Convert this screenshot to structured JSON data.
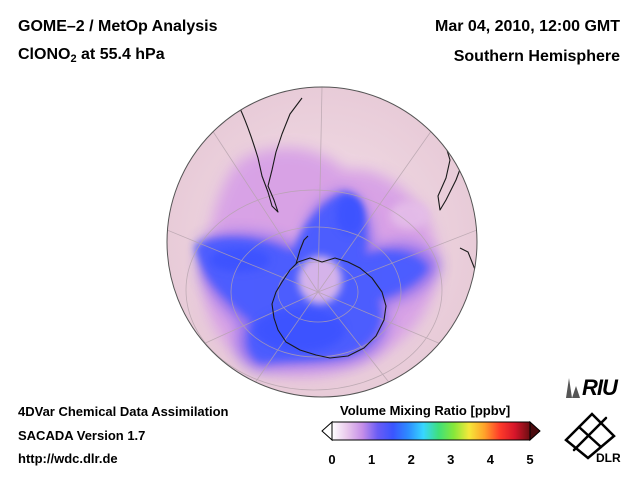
{
  "header": {
    "title_line1": "GOME–2 / MetOp Analysis",
    "species_main": "ClONO",
    "species_sub": "2",
    "species_rest": " at 55.4 hPa",
    "datetime": "Mar 04, 2010, 12:00 GMT",
    "hemisphere": "Southern Hemisphere"
  },
  "footer": {
    "line1": "4DVar Chemical Data Assimilation",
    "line2": "SACADA Version 1.7",
    "line3": "http://wdc.dlr.de"
  },
  "colorbar": {
    "title": "Volume Mixing Ratio [ppbv]",
    "ticks": [
      "0",
      "1",
      "2",
      "3",
      "4",
      "5"
    ],
    "colors": [
      "#ffffff",
      "#e9c8ec",
      "#c58ee8",
      "#6a5cf5",
      "#3a55ff",
      "#2d8cff",
      "#37d6ff",
      "#3fe07a",
      "#86e83a",
      "#f5e83a",
      "#ffa32a",
      "#ff3c2a",
      "#d6162a",
      "#6b0d12"
    ]
  },
  "logos": {
    "riu": "RIU",
    "dlr": "DLR"
  },
  "map": {
    "background_color": "#f1dbe1",
    "low_color": "#4a5cff",
    "mid_color": "#d9a6e8"
  }
}
